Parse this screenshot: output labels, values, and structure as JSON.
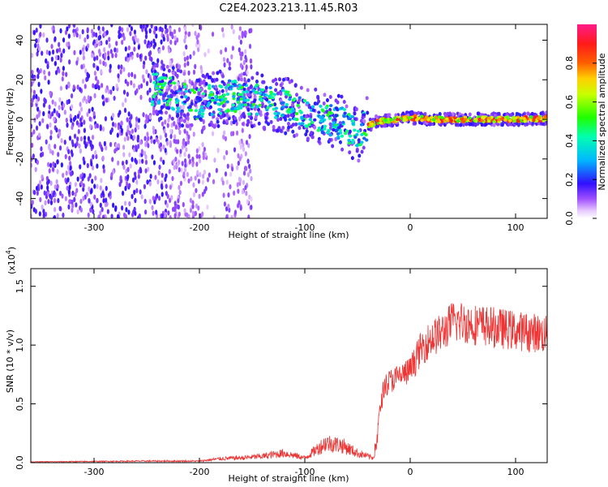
{
  "figure_title": "C2E4.2023.213.11.45.R03",
  "chart_data": [
    {
      "type": "heatmap",
      "title": "C2E4.2023.213.11.45.R03",
      "xlabel": "Height of straight line (km)",
      "ylabel": "Frequency (Hz)",
      "xlim": [
        -360,
        130
      ],
      "ylim": [
        -50,
        48
      ],
      "x_ticks": [
        -300,
        -200,
        -100,
        0,
        100
      ],
      "x_tick_labels": [
        "-300",
        "-200",
        "-100",
        "0",
        "100"
      ],
      "y_ticks": [
        -40,
        -20,
        0,
        20,
        40
      ],
      "y_tick_labels": [
        "-40",
        "-20",
        "0",
        "20",
        "40"
      ],
      "colorbar": {
        "label": "Normalized spectral amplitude",
        "range": [
          0,
          1
        ],
        "ticks": [
          0.0,
          0.2,
          0.4,
          0.6,
          0.8
        ],
        "tick_labels": [
          "0.0",
          "0.2",
          "0.4",
          "0.6",
          "0.8"
        ],
        "colormap": "rainbow (white-violet-blue-cyan-green-yellow-red-magenta)"
      },
      "ridge": [
        {
          "x": -240,
          "y": 15
        },
        {
          "x": -200,
          "y": 8
        },
        {
          "x": -170,
          "y": 12
        },
        {
          "x": -150,
          "y": 10
        },
        {
          "x": -120,
          "y": 7
        },
        {
          "x": -100,
          "y": 4
        },
        {
          "x": -80,
          "y": 0
        },
        {
          "x": -60,
          "y": -3
        },
        {
          "x": -50,
          "y": -8
        },
        {
          "x": -45,
          "y": -4
        },
        {
          "x": -30,
          "y": -1
        },
        {
          "x": -10,
          "y": 0
        },
        {
          "x": 0,
          "y": 1
        },
        {
          "x": 20,
          "y": 0
        },
        {
          "x": 60,
          "y": 0
        },
        {
          "x": 100,
          "y": 0
        },
        {
          "x": 130,
          "y": 0.5
        }
      ],
      "grid": false
    },
    {
      "type": "line",
      "xlabel": "Height of straight line (km)",
      "ylabel": "SNR (10 * v/v)",
      "y_multiplier_label": "(x10",
      "y_multiplier_exponent": "4",
      "y_multiplier_close": ")",
      "xlim": [
        -360,
        130
      ],
      "ylim": [
        0,
        1.65
      ],
      "x_ticks": [
        -300,
        -200,
        -100,
        0,
        100
      ],
      "x_tick_labels": [
        "-300",
        "-200",
        "-100",
        "0",
        "100"
      ],
      "y_ticks": [
        0,
        0.5,
        1.0,
        1.5
      ],
      "y_tick_labels": [
        "0.0",
        "0.5",
        "1.0",
        "1.5"
      ],
      "color": "#ee3333",
      "series_envelope": [
        {
          "x": -360,
          "y": 0.01
        },
        {
          "x": -250,
          "y": 0.02
        },
        {
          "x": -200,
          "y": 0.02
        },
        {
          "x": -180,
          "y": 0.05
        },
        {
          "x": -160,
          "y": 0.06
        },
        {
          "x": -140,
          "y": 0.08
        },
        {
          "x": -120,
          "y": 0.12
        },
        {
          "x": -100,
          "y": 0.06
        },
        {
          "x": -80,
          "y": 0.25
        },
        {
          "x": -65,
          "y": 0.22
        },
        {
          "x": -50,
          "y": 0.12
        },
        {
          "x": -35,
          "y": 0.06
        },
        {
          "x": -30,
          "y": 0.4
        },
        {
          "x": -25,
          "y": 0.7
        },
        {
          "x": -20,
          "y": 0.75
        },
        {
          "x": -10,
          "y": 0.8
        },
        {
          "x": 0,
          "y": 0.85
        },
        {
          "x": 10,
          "y": 1.05
        },
        {
          "x": 20,
          "y": 1.15
        },
        {
          "x": 30,
          "y": 1.2
        },
        {
          "x": 40,
          "y": 1.3
        },
        {
          "x": 50,
          "y": 1.3
        },
        {
          "x": 60,
          "y": 1.28
        },
        {
          "x": 80,
          "y": 1.25
        },
        {
          "x": 100,
          "y": 1.22
        },
        {
          "x": 120,
          "y": 1.2
        },
        {
          "x": 130,
          "y": 1.18
        }
      ],
      "grid": false
    }
  ]
}
